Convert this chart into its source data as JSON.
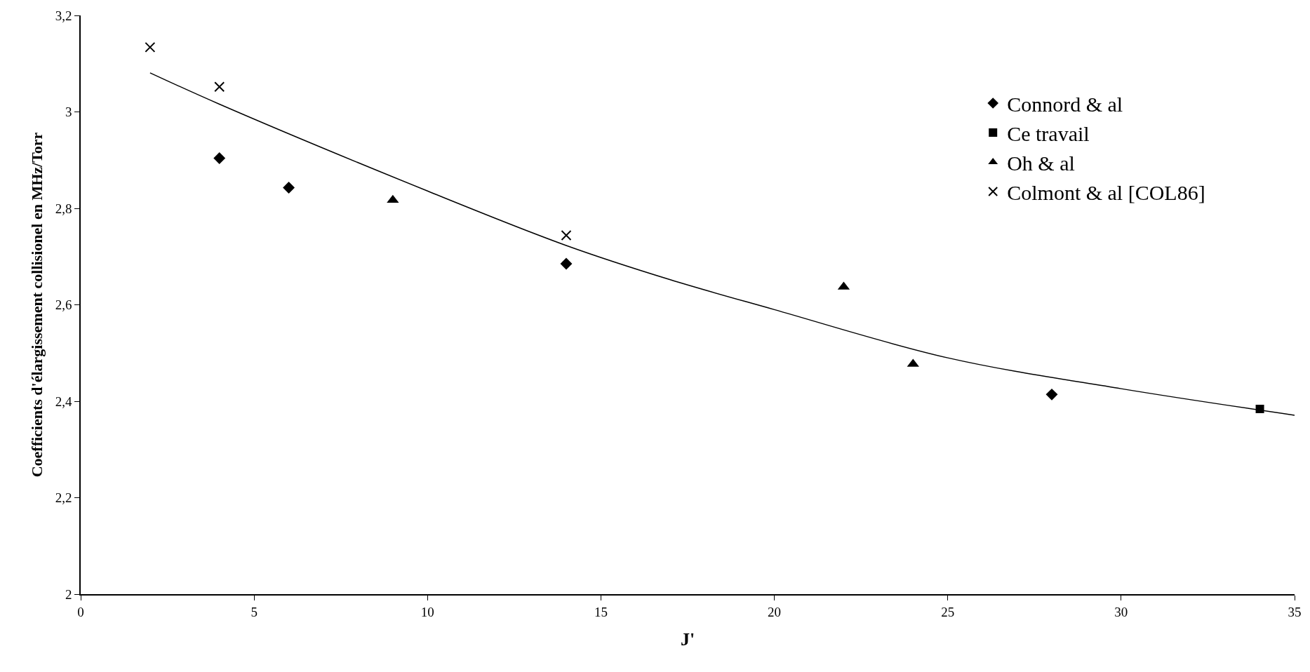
{
  "chart_data": {
    "type": "scatter",
    "xlabel": "J'",
    "ylabel": "Coefficients d'élargissement collisionel en MHz/Torr",
    "xlim": [
      0,
      35
    ],
    "xticks": [
      0,
      5,
      10,
      15,
      20,
      25,
      30,
      35
    ],
    "ylim": [
      2,
      3.2
    ],
    "yticks": [
      {
        "value": 2,
        "label": "2"
      },
      {
        "value": 2.2,
        "label": "2,2"
      },
      {
        "value": 2.4,
        "label": "2,4"
      },
      {
        "value": 2.6,
        "label": "2,6"
      },
      {
        "value": 2.8,
        "label": "2,8"
      },
      {
        "value": 3,
        "label": "3"
      },
      {
        "value": 3.2,
        "label": "3,2"
      }
    ],
    "legend": "top right",
    "series": [
      {
        "name": "Connord & al",
        "color": "#000000",
        "marker": "diamond",
        "x": [
          4,
          6,
          14,
          28
        ],
        "values": [
          2.904,
          2.843,
          2.685,
          2.414
        ]
      },
      {
        "name": "Ce travail",
        "color": "#000000",
        "marker": "square",
        "x": [
          34
        ],
        "values": [
          2.384
        ]
      },
      {
        "name": "Oh & al",
        "color": "#000000",
        "marker": "triangle",
        "x": [
          9,
          22,
          24
        ],
        "values": [
          2.817,
          2.637,
          2.477
        ]
      },
      {
        "name": "Colmont & al [COL86]",
        "color": "#000000",
        "marker": "cross",
        "x": [
          2,
          4,
          14
        ],
        "values": [
          3.134,
          3.052,
          2.744
        ]
      },
      {
        "type": "line",
        "color": "#000000",
        "marker": "none",
        "line_style": "solid",
        "x": [
          2,
          4,
          10,
          14,
          17,
          20,
          25,
          30,
          35
        ],
        "values": [
          3.081,
          3.016,
          2.836,
          2.723,
          2.652,
          2.59,
          2.49,
          2.426,
          2.371
        ]
      }
    ]
  }
}
